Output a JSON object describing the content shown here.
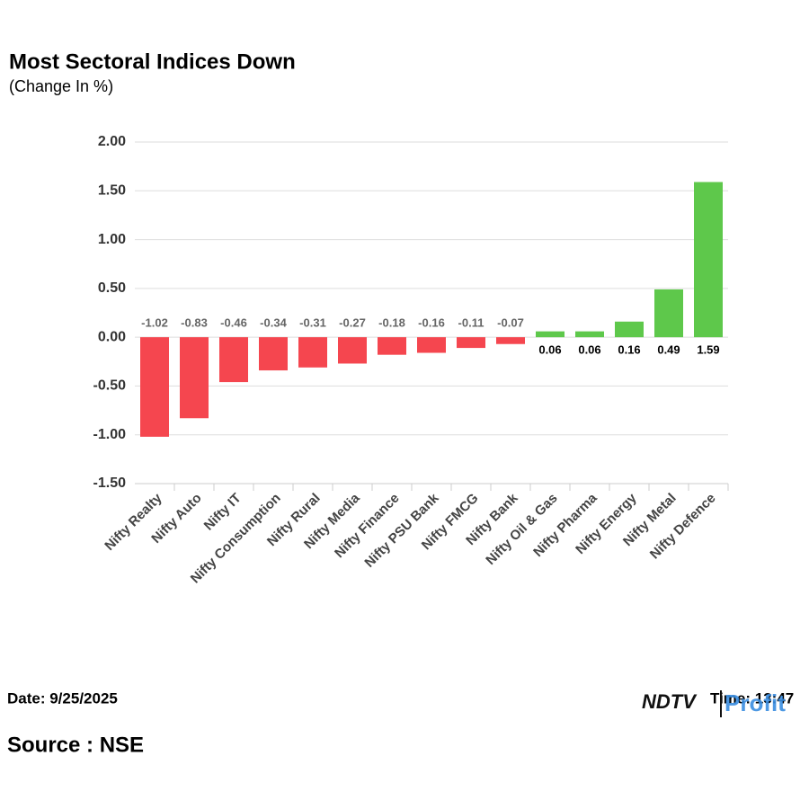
{
  "chart_data": {
    "type": "bar",
    "title": "Most Sectoral Indices Down",
    "subtitle": "(Change In %)",
    "categories": [
      "Nifty Realty",
      "Nifty Auto",
      "Nifty IT",
      "Nifty Consumption",
      "Nifty Rural",
      "Nifty Media",
      "Nifty Finance",
      "Nifty PSU Bank",
      "Nifty FMCG",
      "Nifty Bank",
      "Nifty Oil & Gas",
      "Nifty Pharma",
      "Nifty Energy",
      "Nifty Metal",
      "Nifty Defence"
    ],
    "values": [
      -1.02,
      -0.83,
      -0.46,
      -0.34,
      -0.31,
      -0.27,
      -0.18,
      -0.16,
      -0.11,
      -0.07,
      0.06,
      0.06,
      0.16,
      0.49,
      1.59
    ],
    "positive_color": "#5ec84b",
    "negative_color": "#f5464f",
    "ylim": [
      -1.5,
      2
    ],
    "yticks": [
      {
        "value": -1.5,
        "label": "-1.50"
      },
      {
        "value": -1,
        "label": "-1.00"
      },
      {
        "value": -0.5,
        "label": "-0.50"
      },
      {
        "value": 0,
        "label": "0.00"
      },
      {
        "value": 0.5,
        "label": "0.50"
      },
      {
        "value": 1,
        "label": "1.00"
      },
      {
        "value": 1.5,
        "label": "1.50"
      },
      {
        "value": 2,
        "label": "2.00"
      }
    ],
    "grid": true
  },
  "footer": {
    "date": "Date: 9/25/2025",
    "time": "Time: 13:47",
    "source": "Source : NSE",
    "logo": "NDTV",
    "logo_accent": "Profit"
  }
}
